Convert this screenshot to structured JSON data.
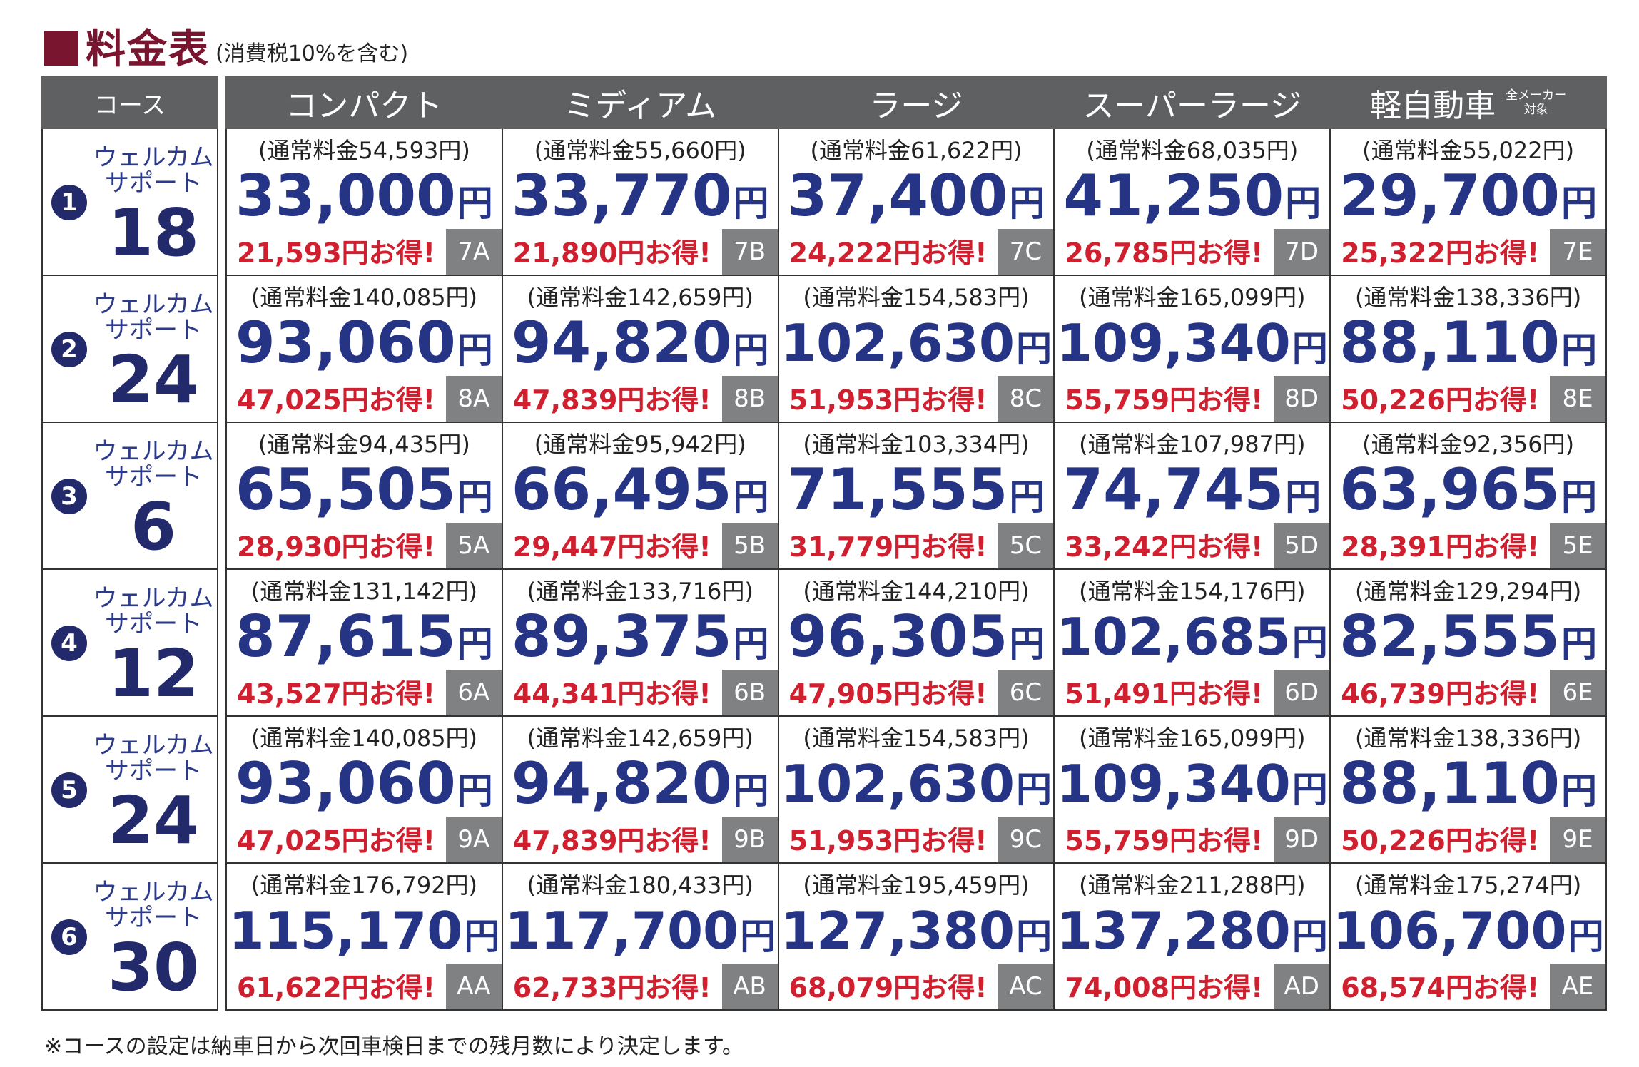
{
  "title": {
    "main": "料金表",
    "sub": "(消費税10%を含む)"
  },
  "headers": {
    "course": "コース",
    "columns": [
      {
        "label": "コンパクト",
        "note": ""
      },
      {
        "label": "ミディアム",
        "note": ""
      },
      {
        "label": "ラージ",
        "note": ""
      },
      {
        "label": "スーパーラージ",
        "note": ""
      },
      {
        "label": "軽自動車",
        "note": "全メーカー\n対象"
      }
    ]
  },
  "rows": [
    {
      "index": "1",
      "course_label": "ウェルカム\nサポート",
      "course_number": "18",
      "cells": [
        {
          "regular": "(通常料金54,593円)",
          "price": "33,000",
          "yen": "円",
          "saving": "21,593円お得!",
          "code": "7A"
        },
        {
          "regular": "(通常料金55,660円)",
          "price": "33,770",
          "yen": "円",
          "saving": "21,890円お得!",
          "code": "7B"
        },
        {
          "regular": "(通常料金61,622円)",
          "price": "37,400",
          "yen": "円",
          "saving": "24,222円お得!",
          "code": "7C"
        },
        {
          "regular": "(通常料金68,035円)",
          "price": "41,250",
          "yen": "円",
          "saving": "26,785円お得!",
          "code": "7D"
        },
        {
          "regular": "(通常料金55,022円)",
          "price": "29,700",
          "yen": "円",
          "saving": "25,322円お得!",
          "code": "7E"
        }
      ]
    },
    {
      "index": "2",
      "course_label": "ウェルカム\nサポート",
      "course_number": "24",
      "cells": [
        {
          "regular": "(通常料金140,085円)",
          "price": "93,060",
          "yen": "円",
          "saving": "47,025円お得!",
          "code": "8A"
        },
        {
          "regular": "(通常料金142,659円)",
          "price": "94,820",
          "yen": "円",
          "saving": "47,839円お得!",
          "code": "8B"
        },
        {
          "regular": "(通常料金154,583円)",
          "price": "102,630",
          "yen": "円",
          "saving": "51,953円お得!",
          "code": "8C"
        },
        {
          "regular": "(通常料金165,099円)",
          "price": "109,340",
          "yen": "円",
          "saving": "55,759円お得!",
          "code": "8D"
        },
        {
          "regular": "(通常料金138,336円)",
          "price": "88,110",
          "yen": "円",
          "saving": "50,226円お得!",
          "code": "8E"
        }
      ]
    },
    {
      "index": "3",
      "course_label": "ウェルカム\nサポート",
      "course_number": "6",
      "cells": [
        {
          "regular": "(通常料金94,435円)",
          "price": "65,505",
          "yen": "円",
          "saving": "28,930円お得!",
          "code": "5A"
        },
        {
          "regular": "(通常料金95,942円)",
          "price": "66,495",
          "yen": "円",
          "saving": "29,447円お得!",
          "code": "5B"
        },
        {
          "regular": "(通常料金103,334円)",
          "price": "71,555",
          "yen": "円",
          "saving": "31,779円お得!",
          "code": "5C"
        },
        {
          "regular": "(通常料金107,987円)",
          "price": "74,745",
          "yen": "円",
          "saving": "33,242円お得!",
          "code": "5D"
        },
        {
          "regular": "(通常料金92,356円)",
          "price": "63,965",
          "yen": "円",
          "saving": "28,391円お得!",
          "code": "5E"
        }
      ]
    },
    {
      "index": "4",
      "course_label": "ウェルカム\nサポート",
      "course_number": "12",
      "cells": [
        {
          "regular": "(通常料金131,142円)",
          "price": "87,615",
          "yen": "円",
          "saving": "43,527円お得!",
          "code": "6A"
        },
        {
          "regular": "(通常料金133,716円)",
          "price": "89,375",
          "yen": "円",
          "saving": "44,341円お得!",
          "code": "6B"
        },
        {
          "regular": "(通常料金144,210円)",
          "price": "96,305",
          "yen": "円",
          "saving": "47,905円お得!",
          "code": "6C"
        },
        {
          "regular": "(通常料金154,176円)",
          "price": "102,685",
          "yen": "円",
          "saving": "51,491円お得!",
          "code": "6D"
        },
        {
          "regular": "(通常料金129,294円)",
          "price": "82,555",
          "yen": "円",
          "saving": "46,739円お得!",
          "code": "6E"
        }
      ]
    },
    {
      "index": "5",
      "course_label": "ウェルカム\nサポート",
      "course_number": "24",
      "cells": [
        {
          "regular": "(通常料金140,085円)",
          "price": "93,060",
          "yen": "円",
          "saving": "47,025円お得!",
          "code": "9A"
        },
        {
          "regular": "(通常料金142,659円)",
          "price": "94,820",
          "yen": "円",
          "saving": "47,839円お得!",
          "code": "9B"
        },
        {
          "regular": "(通常料金154,583円)",
          "price": "102,630",
          "yen": "円",
          "saving": "51,953円お得!",
          "code": "9C"
        },
        {
          "regular": "(通常料金165,099円)",
          "price": "109,340",
          "yen": "円",
          "saving": "55,759円お得!",
          "code": "9D"
        },
        {
          "regular": "(通常料金138,336円)",
          "price": "88,110",
          "yen": "円",
          "saving": "50,226円お得!",
          "code": "9E"
        }
      ]
    },
    {
      "index": "6",
      "course_label": "ウェルカム\nサポート",
      "course_number": "30",
      "cells": [
        {
          "regular": "(通常料金176,792円)",
          "price": "115,170",
          "yen": "円",
          "saving": "61,622円お得!",
          "code": "AA"
        },
        {
          "regular": "(通常料金180,433円)",
          "price": "117,700",
          "yen": "円",
          "saving": "62,733円お得!",
          "code": "AB"
        },
        {
          "regular": "(通常料金195,459円)",
          "price": "127,380",
          "yen": "円",
          "saving": "68,079円お得!",
          "code": "AC"
        },
        {
          "regular": "(通常料金211,288円)",
          "price": "137,280",
          "yen": "円",
          "saving": "74,008円お得!",
          "code": "AD"
        },
        {
          "regular": "(通常料金175,274円)",
          "price": "106,700",
          "yen": "円",
          "saving": "68,574円お得!",
          "code": "AE"
        }
      ]
    }
  ],
  "footnote": "※コースの設定は納車日から次回車検日までの残月数により決定します。",
  "colors": {
    "title": "#7a1530",
    "header_bg": "#5f6062",
    "price": "#263485",
    "saving": "#d0202f",
    "code_bg": "#808183",
    "circle": "#232a6b"
  }
}
